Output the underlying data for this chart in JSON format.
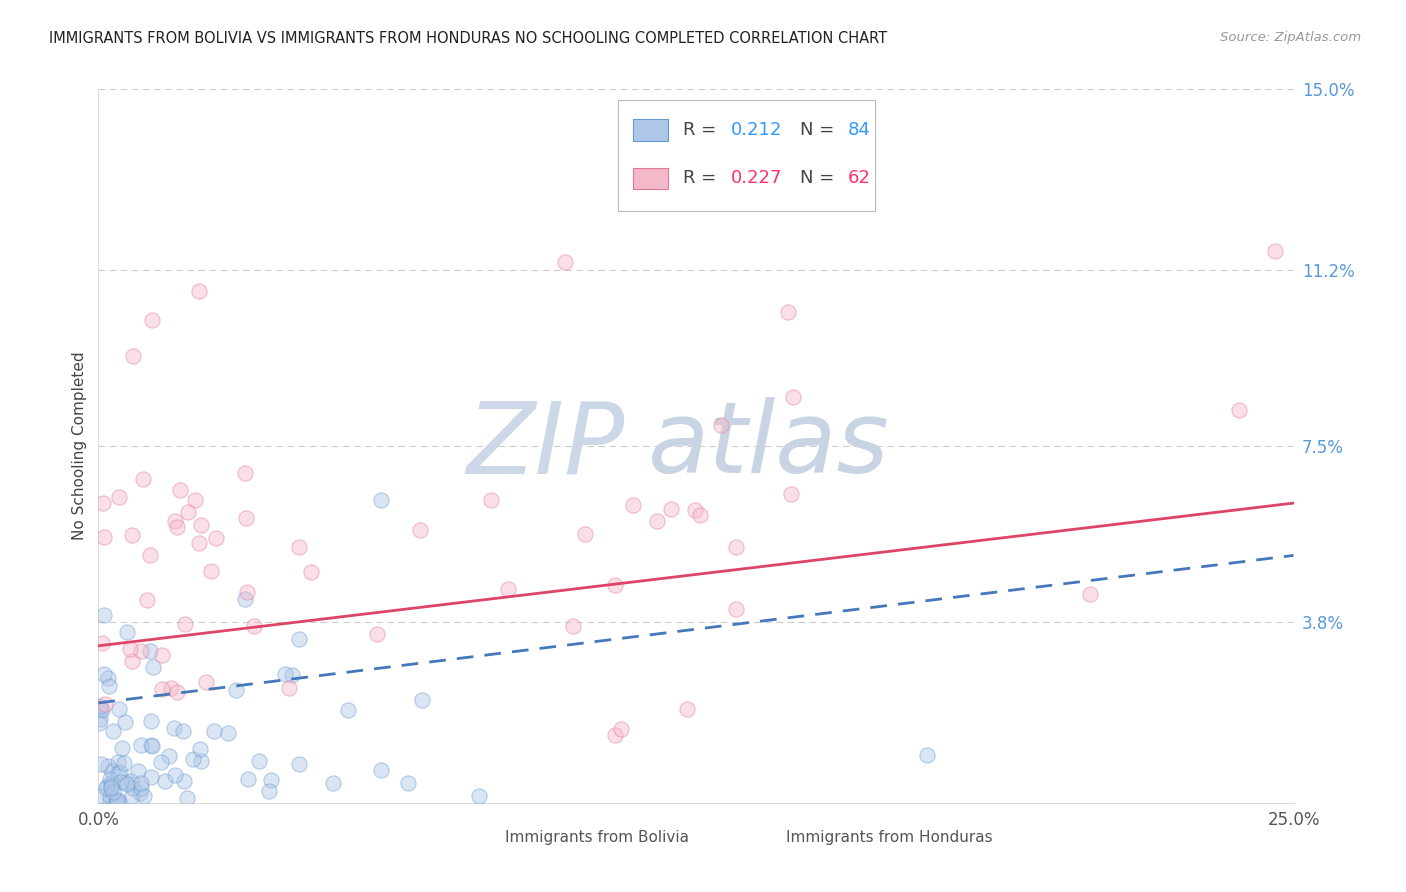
{
  "title": "IMMIGRANTS FROM BOLIVIA VS IMMIGRANTS FROM HONDURAS NO SCHOOLING COMPLETED CORRELATION CHART",
  "source": "Source: ZipAtlas.com",
  "ylabel": "No Schooling Completed",
  "xlim": [
    0.0,
    0.25
  ],
  "ylim": [
    0.0,
    0.15
  ],
  "xtick_vals": [
    0.0,
    0.05,
    0.1,
    0.15,
    0.2,
    0.25
  ],
  "xtick_labels": [
    "0.0%",
    "",
    "",
    "",
    "",
    "25.0%"
  ],
  "ytick_right_labels": [
    "15.0%",
    "11.2%",
    "7.5%",
    "3.8%"
  ],
  "ytick_right_vals": [
    0.15,
    0.112,
    0.075,
    0.038
  ],
  "bolivia_R": "0.212",
  "bolivia_N": "84",
  "honduras_R": "0.227",
  "honduras_N": "62",
  "bolivia_scatter_color": "#aec6e8",
  "bolivia_edge_color": "#6699cc",
  "honduras_scatter_color": "#f5b8c8",
  "honduras_edge_color": "#e07898",
  "bolivia_line_color": "#4477bb",
  "honduras_line_color": "#dd4466",
  "r_n_blue": "#3399ff",
  "r_n_pink": "#ff3366",
  "watermark_zip_color": "#ccd8e8",
  "watermark_atlas_color": "#c8d4e4",
  "background_color": "#ffffff",
  "grid_color": "#cccccc",
  "title_color": "#222222",
  "source_color": "#999999",
  "ylabel_color": "#444444",
  "tick_label_color": "#555555",
  "right_tick_color": "#5599dd",
  "legend_gray": "#444444",
  "bottom_legend_color": "#555555",
  "bolivia_trendline": [
    0.0,
    0.021,
    0.25,
    0.052
  ],
  "honduras_trendline": [
    0.0,
    0.033,
    0.25,
    0.063
  ],
  "bolivia_seed": 42,
  "honduras_seed": 17,
  "scatter_size": 120,
  "scatter_alpha": 0.45
}
